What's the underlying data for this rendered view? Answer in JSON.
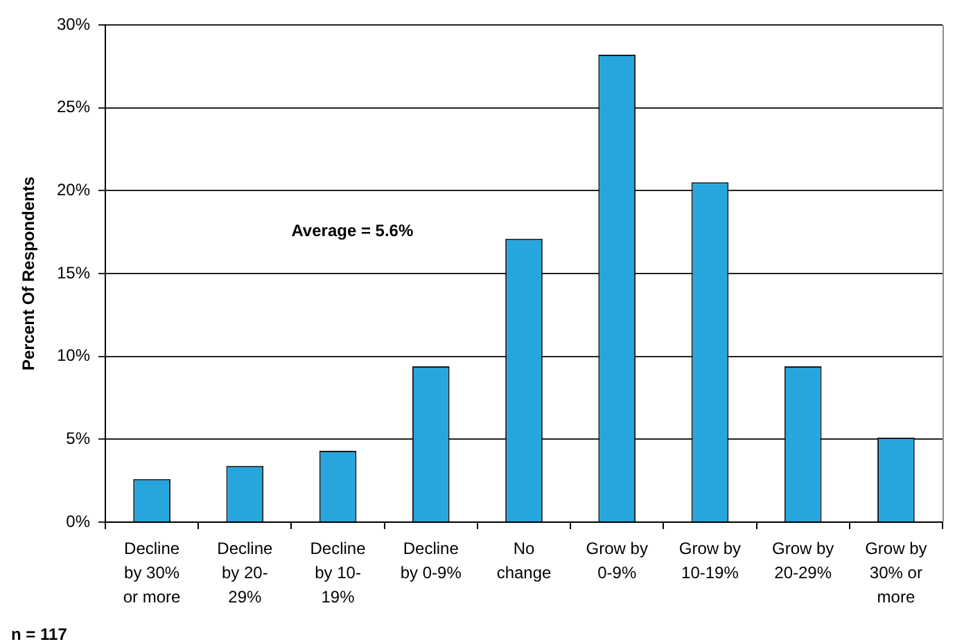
{
  "chart_data": {
    "type": "bar",
    "ylabel": "Percent Of Respondents",
    "categories": [
      "Decline by 30% or more",
      "Decline by 20-29%",
      "Decline by 10-19%",
      "Decline by 0-9%",
      "No change",
      "Grow by 0-9%",
      "Grow by 10-19%",
      "Grow by 20-29%",
      "Grow by 30% or more"
    ],
    "values": [
      2.6,
      3.4,
      4.3,
      9.4,
      17.1,
      28.2,
      20.5,
      9.4,
      5.1
    ],
    "color": "#27a6de",
    "ylim": [
      0,
      30
    ],
    "yticks": [
      {
        "value": 0,
        "label": "0%"
      },
      {
        "value": 5,
        "label": "5%"
      },
      {
        "value": 10,
        "label": "10%"
      },
      {
        "value": 15,
        "label": "15%"
      },
      {
        "value": 20,
        "label": "20%"
      },
      {
        "value": 25,
        "label": "25%"
      },
      {
        "value": 30,
        "label": "30%"
      }
    ],
    "grid": "y",
    "legend": false,
    "annotations": [
      "Average = 5.6%",
      "n = 117"
    ]
  }
}
